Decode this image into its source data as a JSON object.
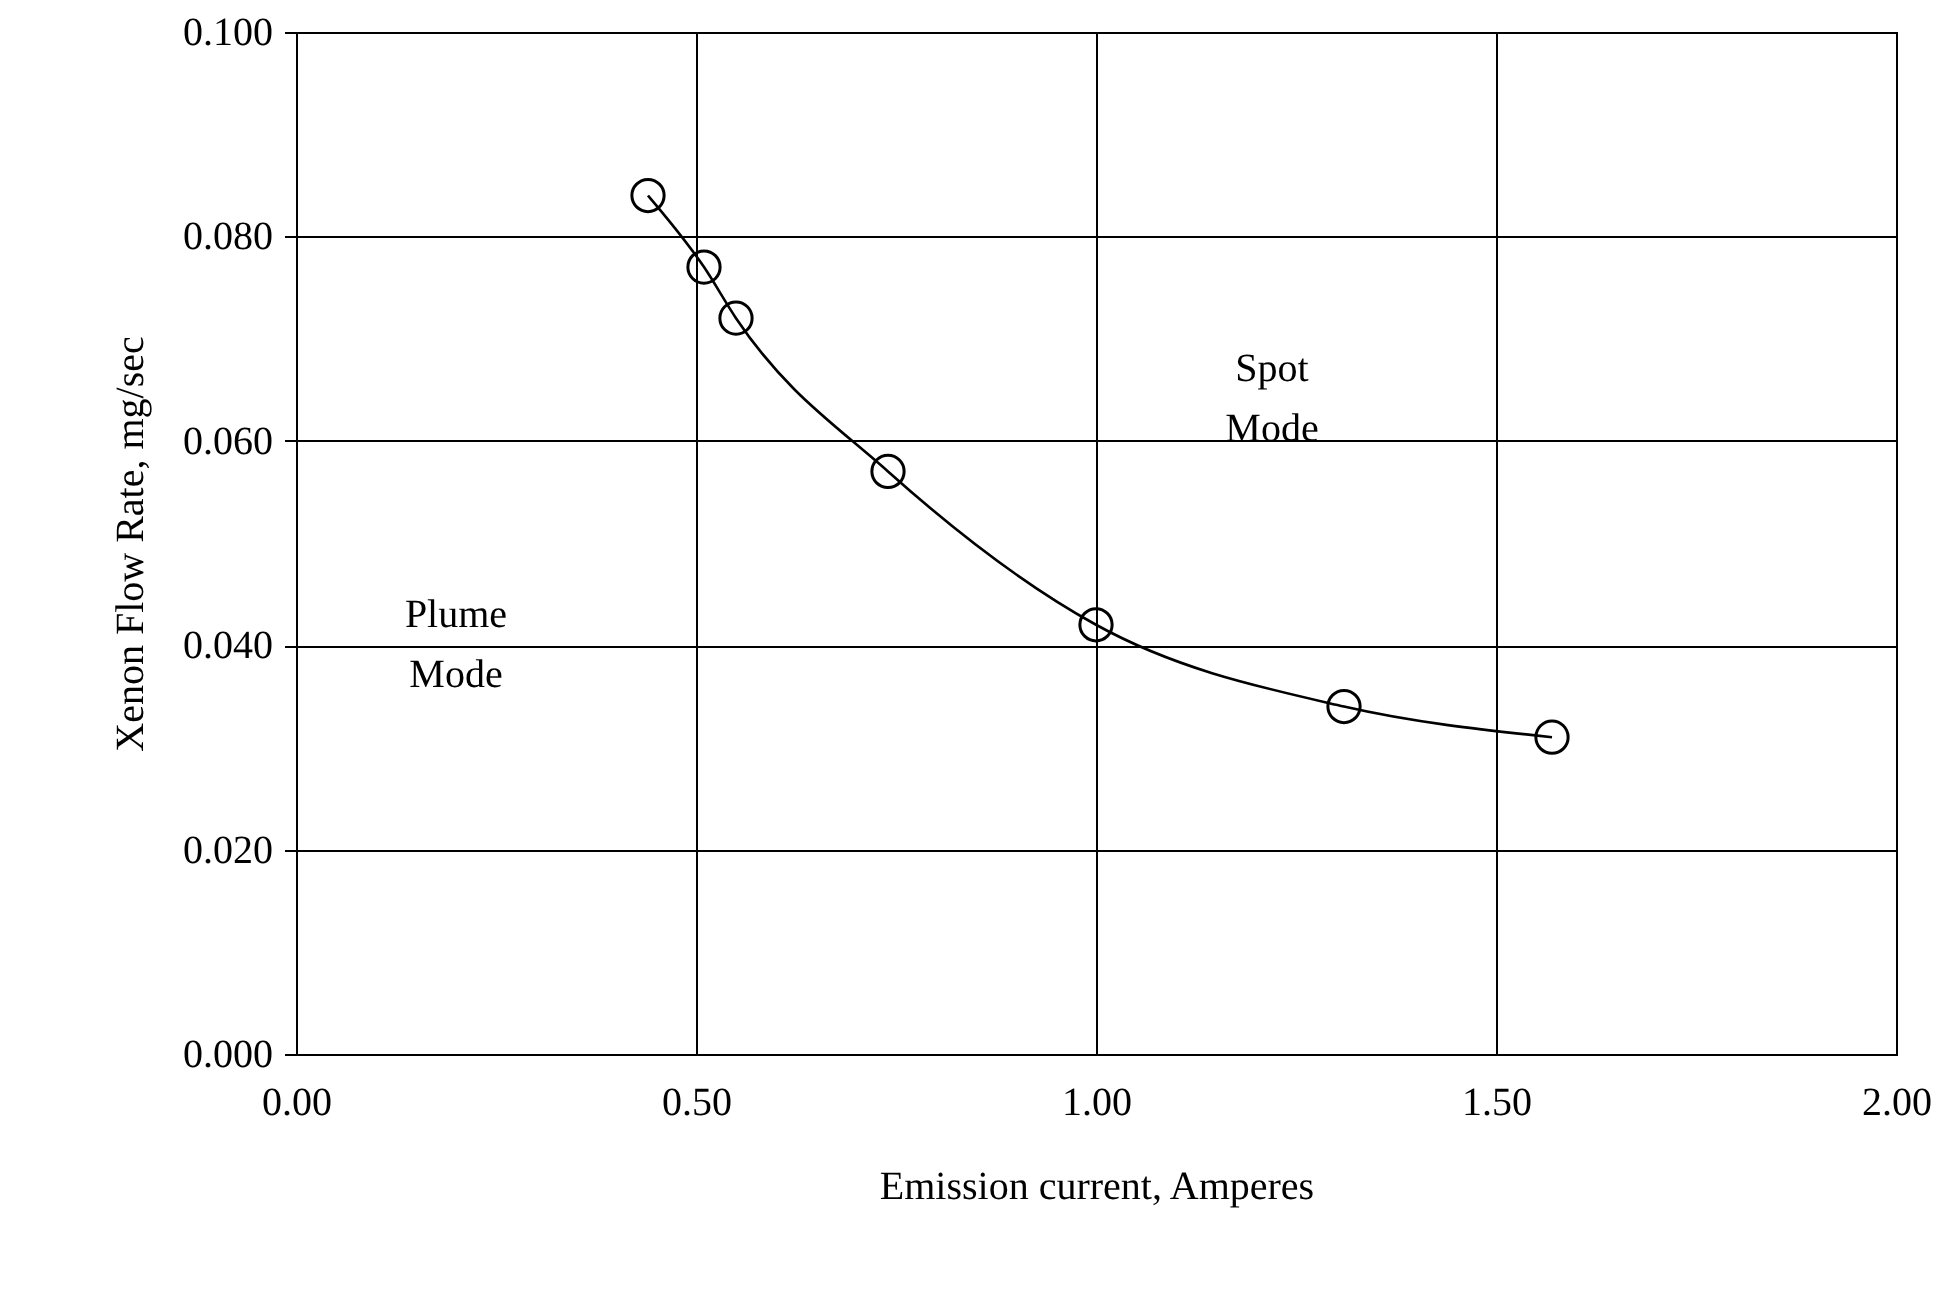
{
  "chart_data": {
    "type": "line",
    "xlabel": "Emission current, Amperes",
    "ylabel": "Xenon Flow Rate, mg/sec",
    "annotations": [
      "Spot Mode",
      "Plume Mode"
    ],
    "series": [
      {
        "color": "#000000",
        "x": [
          0.44,
          0.51,
          0.55,
          0.74,
          1.0,
          1.31,
          1.57
        ],
        "values": [
          0.084,
          0.077,
          0.072,
          0.057,
          0.042,
          0.034,
          0.031
        ]
      }
    ],
    "marker": "circle",
    "line_style": "solid",
    "grid": true,
    "xlim": [
      0,
      2
    ],
    "xticks": [
      {
        "value": 0,
        "label": "0.00"
      },
      {
        "value": 0.5,
        "label": "0.50"
      },
      {
        "value": 1,
        "label": "1.00"
      },
      {
        "value": 1.5,
        "label": "1.50"
      },
      {
        "value": 2,
        "label": "2.00"
      }
    ],
    "ylim": [
      0,
      0.1
    ],
    "yticks": [
      {
        "value": 0,
        "label": "0.000"
      },
      {
        "value": 0.02,
        "label": "0.020"
      },
      {
        "value": 0.04,
        "label": "0.040"
      },
      {
        "value": 0.06,
        "label": "0.060"
      },
      {
        "value": 0.08,
        "label": "0.080"
      },
      {
        "value": 0.1,
        "label": "0.100"
      }
    ]
  }
}
